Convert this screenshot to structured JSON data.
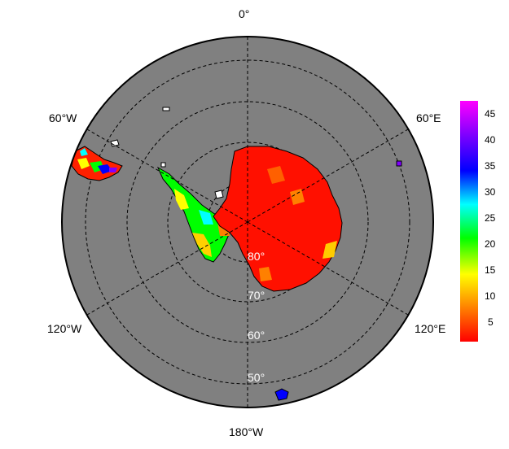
{
  "map": {
    "projection": "south-polar-stereographic",
    "ocean_color": "#808080",
    "border_color": "#000000",
    "graticule_style": "dashed",
    "longitude_labels": {
      "top": "0°",
      "upper_left": "60°W",
      "upper_right": "60°E",
      "lower_left": "120°W",
      "lower_right": "120°E",
      "bottom": "180°W"
    },
    "latitude_labels": [
      "80°",
      "70°",
      "60°",
      "50°"
    ]
  },
  "colorbar": {
    "ticks": [
      "45",
      "40",
      "35",
      "30",
      "25",
      "20",
      "15",
      "10",
      "5"
    ],
    "min": 1,
    "max": 47,
    "colors": [
      "#ff0000",
      "#ff8000",
      "#ffff00",
      "#00ff00",
      "#00ffff",
      "#0000ff",
      "#8000ff",
      "#ff00ff"
    ]
  },
  "chart_data": {
    "type": "heatmap",
    "projection": "south-polar-stereographic",
    "longitude_labels": [
      "0°",
      "60°E",
      "120°E",
      "180°W",
      "120°W",
      "60°W"
    ],
    "latitude_labels": [
      "80°",
      "70°",
      "60°",
      "50°"
    ],
    "colorbar_ticks": [
      5,
      10,
      15,
      20,
      25,
      30,
      35,
      40,
      45
    ],
    "colorbar_range": [
      1,
      47
    ],
    "field_summary": {
      "antarctic_interior": 2,
      "antarctic_peninsula": "10-25",
      "south_america_tip": "1-35",
      "sub_antarctic_islands": "30-45"
    }
  }
}
